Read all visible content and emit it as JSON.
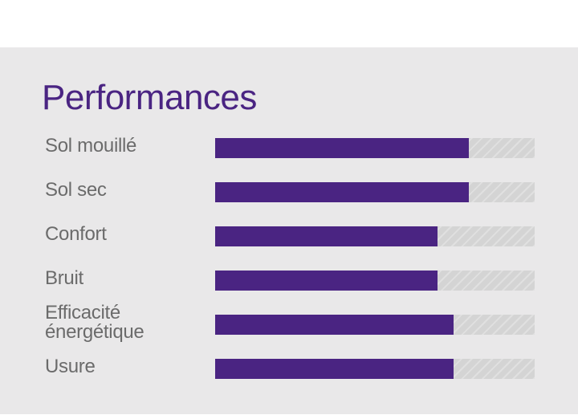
{
  "title": "Performances",
  "colors": {
    "accent": "#4a2482",
    "track": "#d4d4d4",
    "background": "#e9e8e9",
    "label": "#6b6b6b"
  },
  "chart_data": {
    "type": "bar",
    "orientation": "horizontal",
    "title": "Performances",
    "categories": [
      "Sol mouillé",
      "Sol sec",
      "Confort",
      "Bruit",
      "Efficacité énergétique",
      "Usure"
    ],
    "values": [
      79.4,
      79.4,
      69.6,
      69.6,
      74.6,
      74.6
    ],
    "unit": "percent of max",
    "xlim": [
      0,
      100
    ],
    "xlabel": "",
    "ylabel": "",
    "grid": false,
    "legend": null
  },
  "rows": [
    {
      "label": "Sol mouillé",
      "pct": 79.4
    },
    {
      "label": "Sol sec",
      "pct": 79.4
    },
    {
      "label": "Confort",
      "pct": 69.6
    },
    {
      "label": "Bruit",
      "pct": 69.6
    },
    {
      "label": "Efficacité\nénergétique",
      "pct": 74.6
    },
    {
      "label": "Usure",
      "pct": 74.6
    }
  ]
}
